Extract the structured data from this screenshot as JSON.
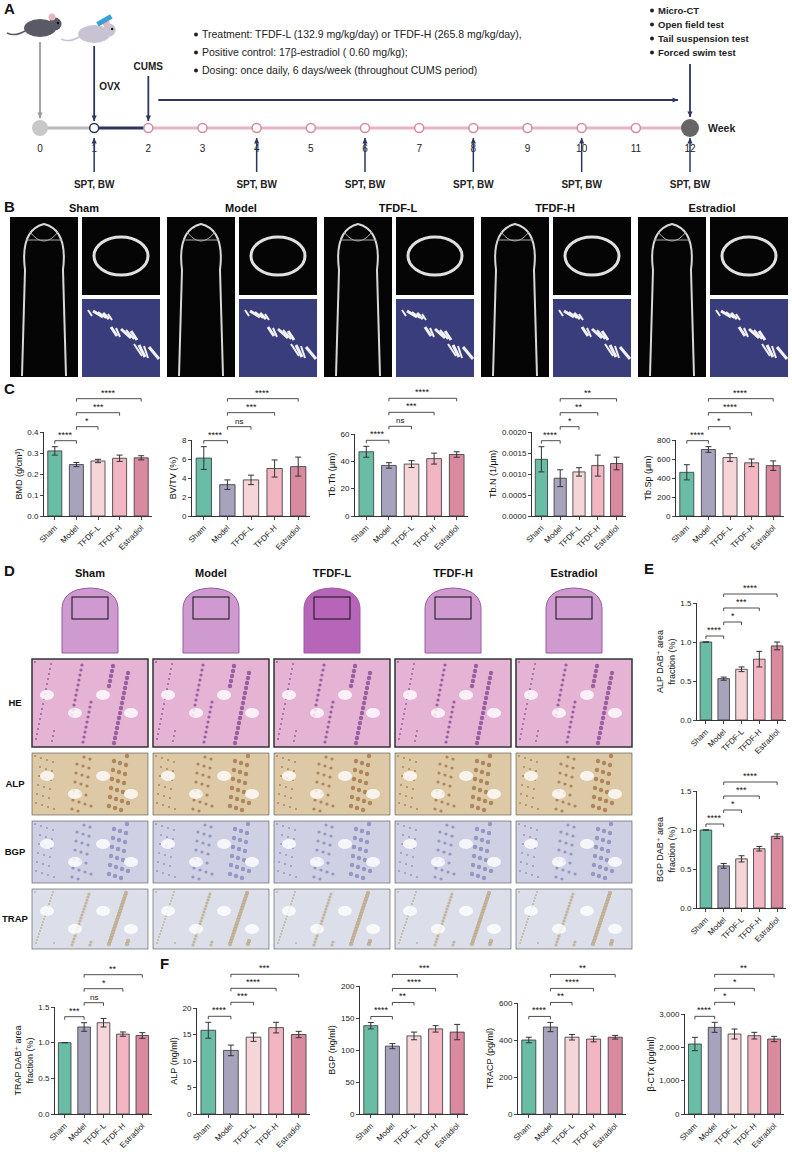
{
  "figure": {
    "A": {
      "letter": "A",
      "procedures": [
        {
          "label": "OVX",
          "week": 1
        },
        {
          "label": "CUMS",
          "week": 2
        }
      ],
      "treatment": [
        "Treatment: TFDF-L (132.9 mg/kg/day) or TFDF-H (265.8 mg/kg/day),",
        "Positive control: 17β-estradiol ( 0.60 mg/kg);",
        "Dosing: once daily, 6 days/week (throughout CUMS period)"
      ],
      "treatment_weeks": [
        2,
        12
      ],
      "endpoints": [
        "Micro-CT",
        "Open field test",
        "Tail suspension test",
        "Forced swim test"
      ],
      "endpoint_week": 12,
      "weeks": [
        0,
        1,
        2,
        3,
        4,
        5,
        6,
        7,
        8,
        9,
        10,
        11,
        12
      ],
      "axis_label": "Week",
      "measurement": {
        "label": "SPT, BW",
        "weeks": [
          1,
          4,
          6,
          8,
          10,
          12
        ]
      }
    },
    "B": {
      "letter": "B",
      "groups": [
        "Sham",
        "Model",
        "TFDF-L",
        "TFDF-H",
        "Estradiol"
      ]
    },
    "C": {
      "letter": "C"
    },
    "D": {
      "letter": "D",
      "groups": [
        "Sham",
        "Model",
        "TFDF-L",
        "TFDF-H",
        "Estradiol"
      ],
      "stains": [
        "HE",
        "ALP",
        "BGP",
        "TRAP"
      ]
    },
    "E": {
      "letter": "E"
    },
    "F": {
      "letter": "F"
    }
  },
  "chart_data": [
    {
      "panel": "C",
      "type": "bar",
      "y_label": "BMD (g/cm³)",
      "categories": [
        "Sham",
        "Model",
        "TFDF-L",
        "TFDF-H",
        "Estradiol"
      ],
      "values": [
        0.31,
        0.245,
        0.262,
        0.275,
        0.277
      ],
      "error": [
        0.02,
        0.01,
        0.008,
        0.015,
        0.01
      ],
      "colors": [
        "#69bda4",
        "#a7a3bd",
        "#f6d5d8",
        "#f2b5c2",
        "#d98a9f"
      ],
      "ylim": [
        0,
        0.4
      ],
      "yticks": [
        {
          "value": 0,
          "label": "0.0"
        },
        0.1,
        0.2,
        0.3,
        0.4
      ],
      "comparisons": [
        {
          "groups": [
            "Sham",
            "Model"
          ],
          "label": "****"
        },
        {
          "groups": [
            "Model",
            "TFDF-L"
          ],
          "label": "*"
        },
        {
          "groups": [
            "Model",
            "TFDF-H"
          ],
          "label": "***"
        },
        {
          "groups": [
            "Model",
            "Estradiol"
          ],
          "label": "****"
        }
      ]
    },
    {
      "panel": "C",
      "type": "bar",
      "y_label": "BV/TV (%)",
      "categories": [
        "Sham",
        "Model",
        "TFDF-L",
        "TFDF-H",
        "Estradiol"
      ],
      "values": [
        6.1,
        3.3,
        3.8,
        5.0,
        5.2
      ],
      "error": [
        1.2,
        0.5,
        0.5,
        0.9,
        1.0
      ],
      "colors": [
        "#69bda4",
        "#a7a3bd",
        "#f6d5d8",
        "#f2b5c2",
        "#d98a9f"
      ],
      "ylim": [
        0,
        8
      ],
      "yticks": [
        0,
        2,
        4,
        6,
        8
      ],
      "comparisons": [
        {
          "groups": [
            "Sham",
            "Model"
          ],
          "label": "****"
        },
        {
          "groups": [
            "Model",
            "TFDF-L"
          ],
          "label": "ns"
        },
        {
          "groups": [
            "Model",
            "TFDF-H"
          ],
          "label": "***"
        },
        {
          "groups": [
            "Model",
            "Estradiol"
          ],
          "label": "****"
        }
      ]
    },
    {
      "panel": "C",
      "type": "bar",
      "y_label": "Tb.Th (μm)",
      "categories": [
        "Sham",
        "Model",
        "TFDF-L",
        "TFDF-H",
        "Estradiol"
      ],
      "values": [
        47,
        37,
        38,
        42,
        45
      ],
      "error": [
        4,
        2,
        2.5,
        4,
        2
      ],
      "colors": [
        "#69bda4",
        "#a7a3bd",
        "#f6d5d8",
        "#f2b5c2",
        "#d98a9f"
      ],
      "ylim": [
        0,
        60
      ],
      "yticks": [
        0,
        20,
        40,
        60
      ],
      "comparisons": [
        {
          "groups": [
            "Sham",
            "Model"
          ],
          "label": "****"
        },
        {
          "groups": [
            "Model",
            "TFDF-L"
          ],
          "label": "ns"
        },
        {
          "groups": [
            "Model",
            "TFDF-H"
          ],
          "label": "***"
        },
        {
          "groups": [
            "Model",
            "Estradiol"
          ],
          "label": "****"
        }
      ]
    },
    {
      "panel": "C",
      "type": "bar",
      "y_label": "Tb.N (1/μm)",
      "categories": [
        "Sham",
        "Model",
        "TFDF-L",
        "TFDF-H",
        "Estradiol"
      ],
      "values": [
        0.00135,
        0.0009,
        0.00105,
        0.0012,
        0.00125
      ],
      "error": [
        0.0003,
        0.0002,
        0.0001,
        0.00025,
        0.00015
      ],
      "colors": [
        "#69bda4",
        "#a7a3bd",
        "#f6d5d8",
        "#f2b5c2",
        "#d98a9f"
      ],
      "ylim": [
        0,
        0.002
      ],
      "yticks": [
        {
          "value": 0,
          "label": "0.0000"
        },
        {
          "value": 0.0005,
          "label": "0.0005"
        },
        {
          "value": 0.001,
          "label": "0.0010"
        },
        {
          "value": 0.0015,
          "label": "0.0015"
        },
        {
          "value": 0.002,
          "label": "0.0020"
        }
      ],
      "comparisons": [
        {
          "groups": [
            "Sham",
            "Model"
          ],
          "label": "****"
        },
        {
          "groups": [
            "Model",
            "TFDF-L"
          ],
          "label": "*"
        },
        {
          "groups": [
            "Model",
            "TFDF-H"
          ],
          "label": "**"
        },
        {
          "groups": [
            "Model",
            "Estradiol"
          ],
          "label": "**"
        }
      ]
    },
    {
      "panel": "C",
      "type": "bar",
      "y_label": "Tb.Sp (μm)",
      "categories": [
        "Sham",
        "Model",
        "TFDF-L",
        "TFDF-H",
        "Estradiol"
      ],
      "values": [
        460,
        700,
        615,
        560,
        530
      ],
      "error": [
        80,
        30,
        40,
        40,
        50
      ],
      "colors": [
        "#69bda4",
        "#a7a3bd",
        "#f6d5d8",
        "#f2b5c2",
        "#d98a9f"
      ],
      "ylim": [
        0,
        800
      ],
      "yticks": [
        0,
        200,
        400,
        600,
        800
      ],
      "comparisons": [
        {
          "groups": [
            "Sham",
            "Model"
          ],
          "label": "****"
        },
        {
          "groups": [
            "Model",
            "TFDF-L"
          ],
          "label": "*"
        },
        {
          "groups": [
            "Model",
            "TFDF-H"
          ],
          "label": "****"
        },
        {
          "groups": [
            "Model",
            "Estradiol"
          ],
          "label": "****"
        }
      ]
    },
    {
      "panel": "E",
      "type": "bar",
      "y_label": "ALP DAB⁺ area fraction (%)",
      "categories": [
        "Sham",
        "Model",
        "TFDF-L",
        "TFDF-H",
        "Estradiol"
      ],
      "values": [
        1.0,
        0.53,
        0.65,
        0.78,
        0.95
      ],
      "error": [
        0,
        0.02,
        0.03,
        0.1,
        0.05
      ],
      "colors": [
        "#69bda4",
        "#a7a3bd",
        "#f6d5d8",
        "#f2b5c2",
        "#d98a9f"
      ],
      "ylim": [
        0,
        1.5
      ],
      "yticks": [
        {
          "value": 0,
          "label": "0.0"
        },
        0.5,
        {
          "value": 1,
          "label": "1.0"
        },
        1.5
      ],
      "comparisons": [
        {
          "groups": [
            "Sham",
            "Model"
          ],
          "label": "****"
        },
        {
          "groups": [
            "Model",
            "TFDF-L"
          ],
          "label": "*"
        },
        {
          "groups": [
            "Model",
            "TFDF-H"
          ],
          "label": "***"
        },
        {
          "groups": [
            "Model",
            "Estradiol"
          ],
          "label": "****"
        }
      ]
    },
    {
      "panel": "E",
      "type": "bar",
      "y_label": "BGP DAB⁺ area fraction (%)",
      "categories": [
        "Sham",
        "Model",
        "TFDF-L",
        "TFDF-H",
        "Estradiol"
      ],
      "values": [
        1.0,
        0.54,
        0.63,
        0.76,
        0.92
      ],
      "error": [
        0,
        0.03,
        0.04,
        0.03,
        0.03
      ],
      "colors": [
        "#69bda4",
        "#a7a3bd",
        "#f6d5d8",
        "#f2b5c2",
        "#d98a9f"
      ],
      "ylim": [
        0,
        1.5
      ],
      "yticks": [
        {
          "value": 0,
          "label": "0.0"
        },
        0.5,
        {
          "value": 1,
          "label": "1.0"
        },
        1.5
      ],
      "comparisons": [
        {
          "groups": [
            "Sham",
            "Model"
          ],
          "label": "****"
        },
        {
          "groups": [
            "Model",
            "TFDF-L"
          ],
          "label": "*"
        },
        {
          "groups": [
            "Model",
            "TFDF-H"
          ],
          "label": "***"
        },
        {
          "groups": [
            "Model",
            "Estradiol"
          ],
          "label": "****"
        }
      ]
    },
    {
      "panel": "E",
      "type": "bar",
      "y_label": "TRAP DAB⁺ area fraction (%)",
      "categories": [
        "Sham",
        "Model",
        "TFDF-L",
        "TFDF-H",
        "Estradiol"
      ],
      "values": [
        1.0,
        1.22,
        1.28,
        1.12,
        1.1
      ],
      "error": [
        0,
        0.06,
        0.06,
        0.03,
        0.04
      ],
      "colors": [
        "#69bda4",
        "#a7a3bd",
        "#f6d5d8",
        "#f2b5c2",
        "#d98a9f"
      ],
      "ylim": [
        0,
        1.5
      ],
      "yticks": [
        {
          "value": 0,
          "label": "0.0"
        },
        0.5,
        {
          "value": 1,
          "label": "1.0"
        },
        1.5
      ],
      "comparisons": [
        {
          "groups": [
            "Sham",
            "Model"
          ],
          "label": "***"
        },
        {
          "groups": [
            "Model",
            "TFDF-L"
          ],
          "label": "ns"
        },
        {
          "groups": [
            "Model",
            "TFDF-H"
          ],
          "label": "*"
        },
        {
          "groups": [
            "Model",
            "Estradiol"
          ],
          "label": "**"
        }
      ]
    },
    {
      "panel": "F",
      "type": "bar",
      "y_label": "ALP (ng/ml)",
      "categories": [
        "Sham",
        "Model",
        "TFDF-L",
        "TFDF-H",
        "Estradiol"
      ],
      "values": [
        15.8,
        12.0,
        14.5,
        16.3,
        15.0
      ],
      "error": [
        1.5,
        1.0,
        0.8,
        1.0,
        0.6
      ],
      "colors": [
        "#69bda4",
        "#a7a3bd",
        "#f6d5d8",
        "#f2b5c2",
        "#d98a9f"
      ],
      "ylim": [
        0,
        20
      ],
      "yticks": [
        0,
        5,
        10,
        15,
        20
      ],
      "comparisons": [
        {
          "groups": [
            "Sham",
            "Model"
          ],
          "label": "****"
        },
        {
          "groups": [
            "Model",
            "TFDF-L"
          ],
          "label": "***"
        },
        {
          "groups": [
            "Model",
            "TFDF-H"
          ],
          "label": "****"
        },
        {
          "groups": [
            "Model",
            "Estradiol"
          ],
          "label": "***"
        }
      ]
    },
    {
      "panel": "F",
      "type": "bar",
      "y_label": "BGP (ng/ml)",
      "categories": [
        "Sham",
        "Model",
        "TFDF-L",
        "TFDF-H",
        "Estradiol"
      ],
      "values": [
        138,
        106,
        122,
        133,
        128
      ],
      "error": [
        5,
        4,
        6,
        5,
        12
      ],
      "colors": [
        "#69bda4",
        "#a7a3bd",
        "#f6d5d8",
        "#f2b5c2",
        "#d98a9f"
      ],
      "ylim": [
        0,
        200
      ],
      "yticks": [
        0,
        50,
        100,
        150,
        200
      ],
      "comparisons": [
        {
          "groups": [
            "Sham",
            "Model"
          ],
          "label": "****"
        },
        {
          "groups": [
            "Model",
            "TFDF-L"
          ],
          "label": "**"
        },
        {
          "groups": [
            "Model",
            "TFDF-H"
          ],
          "label": "****"
        },
        {
          "groups": [
            "Model",
            "Estradiol"
          ],
          "label": "***"
        }
      ]
    },
    {
      "panel": "F",
      "type": "bar",
      "y_label": "TRACP (pg/ml)",
      "categories": [
        "Sham",
        "Model",
        "TFDF-L",
        "TFDF-H",
        "Estradiol"
      ],
      "values": [
        400,
        470,
        415,
        405,
        415
      ],
      "error": [
        15,
        25,
        15,
        15,
        10
      ],
      "colors": [
        "#69bda4",
        "#a7a3bd",
        "#f6d5d8",
        "#f2b5c2",
        "#d98a9f"
      ],
      "ylim": [
        0,
        600
      ],
      "yticks": [
        0,
        200,
        400,
        600
      ],
      "comparisons": [
        {
          "groups": [
            "Sham",
            "Model"
          ],
          "label": "****"
        },
        {
          "groups": [
            "Model",
            "TFDF-L"
          ],
          "label": "**"
        },
        {
          "groups": [
            "Model",
            "TFDF-H"
          ],
          "label": "****"
        },
        {
          "groups": [
            "Model",
            "Estradiol"
          ],
          "label": "**"
        }
      ]
    },
    {
      "panel": "F",
      "type": "bar",
      "y_label": "β-CTx (pg/ml)",
      "categories": [
        "Sham",
        "Model",
        "TFDF-L",
        "TFDF-H",
        "Estradiol"
      ],
      "values": [
        2100,
        2600,
        2400,
        2350,
        2250
      ],
      "error": [
        200,
        150,
        150,
        100,
        80
      ],
      "colors": [
        "#69bda4",
        "#a7a3bd",
        "#f6d5d8",
        "#f2b5c2",
        "#d98a9f"
      ],
      "ylim": [
        0,
        3000
      ],
      "yticks": [
        0,
        {
          "value": 1000,
          "label": "1,000"
        },
        {
          "value": 2000,
          "label": "2,000"
        },
        {
          "value": 3000,
          "label": "3,000"
        }
      ],
      "comparisons": [
        {
          "groups": [
            "Sham",
            "Model"
          ],
          "label": "****"
        },
        {
          "groups": [
            "Model",
            "TFDF-L"
          ],
          "label": "*"
        },
        {
          "groups": [
            "Model",
            "TFDF-H"
          ],
          "label": "*"
        },
        {
          "groups": [
            "Model",
            "Estradiol"
          ],
          "label": "**"
        }
      ]
    }
  ]
}
